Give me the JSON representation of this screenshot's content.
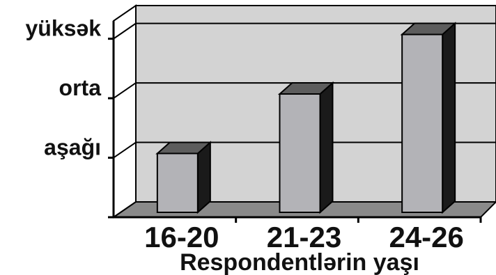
{
  "chart_data": {
    "type": "bar",
    "style": "3d-column",
    "categories": [
      "16-20",
      "21-23",
      "24-26"
    ],
    "values": [
      1,
      2,
      3
    ],
    "y_tick_labels": [
      "aşağı",
      "orta",
      "yüksək"
    ],
    "y_tick_values": [
      1,
      2,
      3
    ],
    "ylim": [
      0,
      3.3
    ],
    "title": "",
    "xlabel": "Respondentlərin yaşı",
    "ylabel": "",
    "grid": true,
    "colors": {
      "bar_front": "#b3b3b7",
      "bar_side": "#1a1a1a",
      "bar_top": "#5d5d5d",
      "back_wall": "#d3d3d3",
      "left_wall": "#ffffff",
      "floor": "#8a8a8a",
      "gridline": "#000000"
    }
  }
}
